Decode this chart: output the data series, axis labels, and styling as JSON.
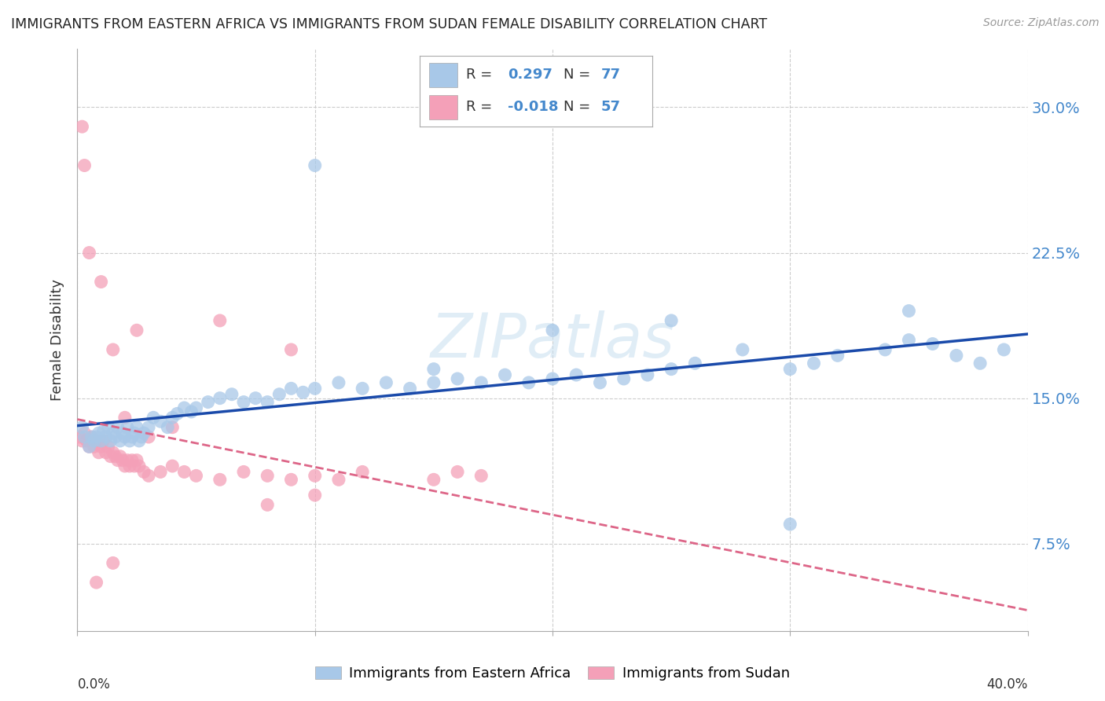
{
  "title": "IMMIGRANTS FROM EASTERN AFRICA VS IMMIGRANTS FROM SUDAN FEMALE DISABILITY CORRELATION CHART",
  "source": "Source: ZipAtlas.com",
  "ylabel": "Female Disability",
  "series1_label": "Immigrants from Eastern Africa",
  "series2_label": "Immigrants from Sudan",
  "series1_R": 0.297,
  "series1_N": 77,
  "series2_R": -0.018,
  "series2_N": 57,
  "series1_color": "#a8c8e8",
  "series2_color": "#f4a0b8",
  "series1_line_color": "#1a4aaa",
  "series2_line_color": "#dd6688",
  "background_color": "#ffffff",
  "grid_color": "#cccccc",
  "yticks": [
    0.075,
    0.15,
    0.225,
    0.3
  ],
  "ytick_labels": [
    "7.5%",
    "15.0%",
    "22.5%",
    "30.0%"
  ],
  "xlim": [
    0.0,
    0.4
  ],
  "ylim": [
    0.03,
    0.33
  ],
  "series1_x": [
    0.002,
    0.003,
    0.005,
    0.006,
    0.007,
    0.008,
    0.009,
    0.01,
    0.011,
    0.012,
    0.013,
    0.014,
    0.015,
    0.016,
    0.017,
    0.018,
    0.019,
    0.02,
    0.021,
    0.022,
    0.023,
    0.024,
    0.025,
    0.026,
    0.027,
    0.028,
    0.03,
    0.032,
    0.035,
    0.038,
    0.04,
    0.042,
    0.045,
    0.048,
    0.05,
    0.055,
    0.06,
    0.065,
    0.07,
    0.075,
    0.08,
    0.085,
    0.09,
    0.095,
    0.1,
    0.11,
    0.12,
    0.13,
    0.14,
    0.15,
    0.16,
    0.17,
    0.18,
    0.19,
    0.2,
    0.21,
    0.22,
    0.23,
    0.24,
    0.25,
    0.26,
    0.28,
    0.3,
    0.31,
    0.32,
    0.34,
    0.35,
    0.36,
    0.37,
    0.38,
    0.39,
    0.35,
    0.3,
    0.25,
    0.2,
    0.15,
    0.1
  ],
  "series1_y": [
    0.135,
    0.13,
    0.125,
    0.13,
    0.128,
    0.13,
    0.132,
    0.128,
    0.133,
    0.13,
    0.135,
    0.128,
    0.132,
    0.13,
    0.135,
    0.128,
    0.132,
    0.13,
    0.135,
    0.128,
    0.13,
    0.132,
    0.135,
    0.128,
    0.13,
    0.132,
    0.135,
    0.14,
    0.138,
    0.135,
    0.14,
    0.142,
    0.145,
    0.143,
    0.145,
    0.148,
    0.15,
    0.152,
    0.148,
    0.15,
    0.148,
    0.152,
    0.155,
    0.153,
    0.155,
    0.158,
    0.155,
    0.158,
    0.155,
    0.158,
    0.16,
    0.158,
    0.162,
    0.158,
    0.16,
    0.162,
    0.158,
    0.16,
    0.162,
    0.165,
    0.168,
    0.175,
    0.165,
    0.168,
    0.172,
    0.175,
    0.18,
    0.178,
    0.172,
    0.168,
    0.175,
    0.195,
    0.085,
    0.19,
    0.185,
    0.165,
    0.27
  ],
  "series2_x": [
    0.001,
    0.002,
    0.003,
    0.004,
    0.005,
    0.006,
    0.007,
    0.008,
    0.009,
    0.01,
    0.011,
    0.012,
    0.013,
    0.014,
    0.015,
    0.016,
    0.017,
    0.018,
    0.019,
    0.02,
    0.021,
    0.022,
    0.023,
    0.024,
    0.025,
    0.026,
    0.028,
    0.03,
    0.035,
    0.04,
    0.045,
    0.05,
    0.06,
    0.07,
    0.08,
    0.09,
    0.1,
    0.11,
    0.12,
    0.15,
    0.16,
    0.17,
    0.09,
    0.06,
    0.025,
    0.015,
    0.01,
    0.005,
    0.003,
    0.002,
    0.02,
    0.03,
    0.04,
    0.08,
    0.1,
    0.015,
    0.008
  ],
  "series2_y": [
    0.13,
    0.128,
    0.132,
    0.128,
    0.125,
    0.13,
    0.125,
    0.128,
    0.122,
    0.125,
    0.128,
    0.122,
    0.125,
    0.12,
    0.122,
    0.12,
    0.118,
    0.12,
    0.118,
    0.115,
    0.118,
    0.115,
    0.118,
    0.115,
    0.118,
    0.115,
    0.112,
    0.11,
    0.112,
    0.115,
    0.112,
    0.11,
    0.108,
    0.112,
    0.11,
    0.108,
    0.11,
    0.108,
    0.112,
    0.108,
    0.112,
    0.11,
    0.175,
    0.19,
    0.185,
    0.175,
    0.21,
    0.225,
    0.27,
    0.29,
    0.14,
    0.13,
    0.135,
    0.095,
    0.1,
    0.065,
    0.055
  ]
}
